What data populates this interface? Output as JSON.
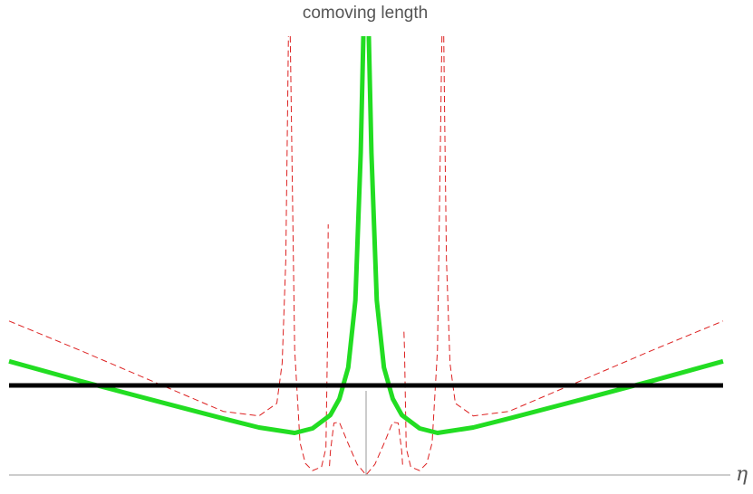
{
  "chart_data": {
    "type": "line",
    "title": "",
    "xlabel": "η",
    "ylabel": "comoving length",
    "xlim": [
      -2.0,
      2.0
    ],
    "ylim": [
      0,
      4.9
    ],
    "grid": false,
    "legend": "none",
    "series": [
      {
        "style": "thick-solid",
        "color": "#000000",
        "x": [
          -2.0,
          2.0
        ],
        "y": [
          1.0,
          1.0
        ]
      },
      {
        "style": "thick-solid",
        "color": "#22dd22",
        "segments": [
          {
            "x": [
              -2.0,
              -1.6,
              -1.2,
              -0.8,
              -0.6,
              -0.4,
              -0.3,
              -0.2,
              -0.15,
              -0.1,
              -0.06,
              -0.03,
              -0.015
            ],
            "y": [
              1.27,
              1.05,
              0.84,
              0.63,
              0.53,
              0.47,
              0.52,
              0.67,
              0.85,
              1.2,
              1.95,
              3.6,
              4.9
            ]
          },
          {
            "x": [
              0.015,
              0.03,
              0.06,
              0.1,
              0.15,
              0.2,
              0.3,
              0.4,
              0.6,
              0.8,
              1.2,
              1.6,
              2.0
            ],
            "y": [
              4.9,
              3.6,
              1.95,
              1.2,
              0.85,
              0.67,
              0.52,
              0.47,
              0.53,
              0.63,
              0.84,
              1.05,
              1.27
            ]
          }
        ]
      },
      {
        "style": "thin-dashed",
        "color": "#dd2222",
        "segments": [
          {
            "x": [
              -2.0,
              -1.6,
              -1.2,
              -0.8,
              -0.6,
              -0.5,
              -0.47,
              -0.45,
              -0.44,
              -0.435
            ],
            "y": [
              1.72,
              1.39,
              1.05,
              0.71,
              0.66,
              0.8,
              1.25,
              2.4,
              4.0,
              4.9
            ]
          },
          {
            "x": [
              -0.425,
              -0.4,
              -0.37,
              -0.34,
              -0.3,
              -0.25,
              -0.225,
              -0.215,
              -0.212
            ],
            "y": [
              4.9,
              1.4,
              0.36,
              0.13,
              0.05,
              0.09,
              0.3,
              1.6,
              2.8
            ]
          },
          {
            "x": [
              -0.205,
              -0.2,
              -0.18,
              -0.15,
              -0.1,
              -0.05,
              0.0,
              0.05,
              0.1,
              0.15,
              0.18,
              0.2,
              0.205
            ],
            "y": [
              0.1,
              0.26,
              0.58,
              0.59,
              0.35,
              0.12,
              0.0,
              0.12,
              0.35,
              0.59,
              0.58,
              0.26,
              0.1
            ]
          },
          {
            "x": [
              0.212,
              0.215,
              0.225,
              0.25,
              0.3,
              0.34,
              0.37,
              0.4,
              0.425
            ],
            "y": [
              1.6,
              1.4,
              0.3,
              0.09,
              0.05,
              0.13,
              0.36,
              1.4,
              4.9
            ]
          },
          {
            "x": [
              0.435,
              0.44,
              0.45,
              0.47,
              0.5,
              0.6,
              0.8,
              1.2,
              1.6,
              2.0
            ],
            "y": [
              4.9,
              4.0,
              2.4,
              1.25,
              0.8,
              0.66,
              0.71,
              1.05,
              1.39,
              1.72
            ]
          }
        ]
      }
    ]
  }
}
